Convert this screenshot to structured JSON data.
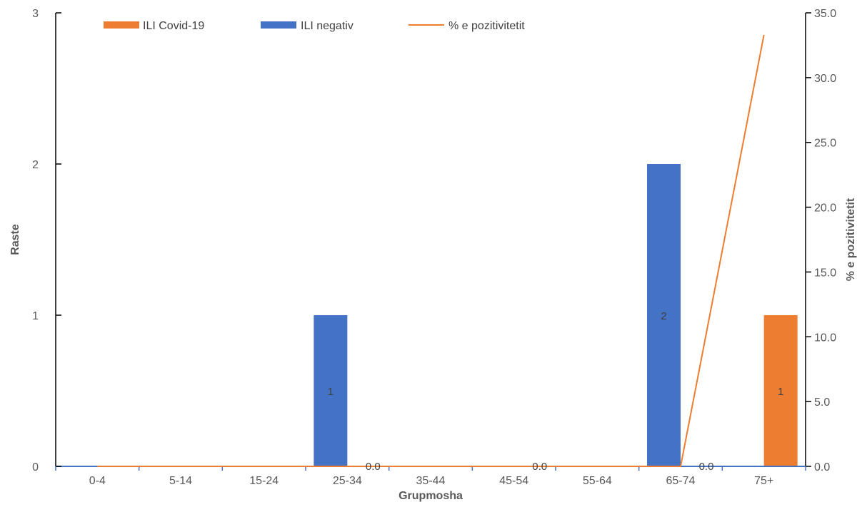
{
  "chart_data": {
    "type": "bar",
    "categories": [
      "0-4",
      "5-14",
      "15-24",
      "25-34",
      "35-44",
      "45-54",
      "55-64",
      "65-74",
      "75+"
    ],
    "series": [
      {
        "name": "ILI Covid-19",
        "kind": "bar",
        "axis": "left",
        "color": "#ED7D31",
        "values": [
          0,
          0,
          0,
          0,
          0,
          0,
          0,
          0,
          1
        ]
      },
      {
        "name": "ILI negativ",
        "kind": "bar",
        "axis": "left",
        "color": "#4472C4",
        "values": [
          0,
          0,
          0,
          1,
          0,
          0,
          0,
          2,
          0
        ]
      },
      {
        "name": "% e pozitivitetit",
        "kind": "line",
        "axis": "right",
        "color": "#ED7D31",
        "values": [
          0,
          0,
          0,
          0,
          0,
          0,
          0,
          0,
          33.3
        ]
      }
    ],
    "data_labels": [
      {
        "series": 1,
        "index": 3,
        "text": "1"
      },
      {
        "series": 1,
        "index": 7,
        "text": "2"
      },
      {
        "series": 0,
        "index": 8,
        "text": "1"
      },
      {
        "series": 2,
        "index": 3,
        "text": "0.0"
      },
      {
        "series": 2,
        "index": 5,
        "text": "0.0"
      },
      {
        "series": 2,
        "index": 7,
        "text": "0.0"
      }
    ],
    "xlabel": "Grupmosha",
    "ylabel": "Raste",
    "y2label": "% e pozitivitetit",
    "ylim": [
      0,
      3
    ],
    "yticks": [
      "0",
      "1",
      "2",
      "3"
    ],
    "y2lim": [
      0,
      35
    ],
    "y2ticks": [
      "0.0",
      "5.0",
      "10.0",
      "15.0",
      "20.0",
      "25.0",
      "30.0",
      "35.0"
    ],
    "grid": false,
    "legend_position": "top"
  }
}
